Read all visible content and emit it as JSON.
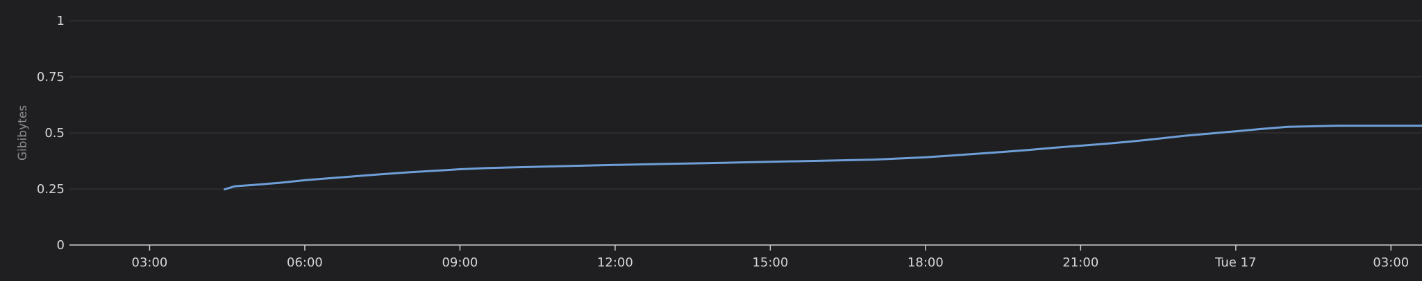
{
  "chart_data": {
    "type": "line",
    "ylabel": "Gibibytes",
    "ylim": [
      0,
      1
    ],
    "y_ticks": [
      "0",
      "0.25",
      "0.5",
      "0.75",
      "1"
    ],
    "y_tick_values": [
      0,
      0.25,
      0.5,
      0.75,
      1
    ],
    "x_ticks": [
      "03:00",
      "06:00",
      "09:00",
      "12:00",
      "15:00",
      "18:00",
      "21:00",
      "Tue 17",
      "03:00"
    ],
    "x_tick_hours": [
      3,
      6,
      9,
      12,
      15,
      18,
      21,
      24,
      27
    ],
    "xlim_hours": [
      1.45,
      27.6
    ],
    "x_unit": "hours",
    "grid": true,
    "series": [
      {
        "color": "#6f9fd8",
        "x": [
          4.45,
          4.65,
          5.0,
          5.5,
          6.0,
          6.5,
          7.0,
          7.5,
          8.0,
          8.5,
          9.0,
          9.5,
          10.0,
          11.0,
          12.0,
          13.0,
          14.0,
          15.0,
          16.0,
          17.0,
          18.0,
          18.5,
          19.0,
          19.5,
          20.0,
          20.5,
          21.0,
          21.5,
          22.0,
          22.5,
          23.0,
          23.5,
          24.0,
          24.5,
          25.0,
          26.0,
          27.0,
          27.6
        ],
        "y": [
          0.248,
          0.262,
          0.268,
          0.277,
          0.289,
          0.298,
          0.307,
          0.316,
          0.324,
          0.331,
          0.338,
          0.343,
          0.346,
          0.352,
          0.357,
          0.362,
          0.366,
          0.371,
          0.376,
          0.381,
          0.391,
          0.399,
          0.407,
          0.415,
          0.424,
          0.434,
          0.443,
          0.452,
          0.462,
          0.474,
          0.487,
          0.497,
          0.507,
          0.518,
          0.527,
          0.532,
          0.532,
          0.532
        ]
      }
    ]
  }
}
